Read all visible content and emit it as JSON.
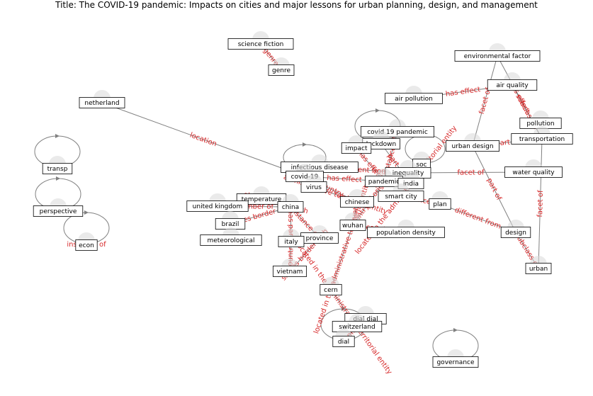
{
  "title": "Title: The COVID-19 pandemic: Impacts on cities and major lessons for urban planning, design, and management",
  "nodes": [
    {
      "id": "science_fiction",
      "label": "science fiction"
    },
    {
      "id": "genre",
      "label": "genre"
    },
    {
      "id": "environmental_factor",
      "label": "environmental factor"
    },
    {
      "id": "air_quality",
      "label": "air quality"
    },
    {
      "id": "netherland",
      "label": "netherland"
    },
    {
      "id": "air_pollution",
      "label": "air pollution"
    },
    {
      "id": "pollution",
      "label": "pollution"
    },
    {
      "id": "covid19_pandemic",
      "label": "covid 19 pandemic"
    },
    {
      "id": "transportation",
      "label": "transportation"
    },
    {
      "id": "urban_design",
      "label": "urban design"
    },
    {
      "id": "lockdown",
      "label": "lockdown"
    },
    {
      "id": "impact",
      "label": "impact"
    },
    {
      "id": "transp",
      "label": "transp"
    },
    {
      "id": "soc",
      "label": "soc"
    },
    {
      "id": "infectious_disease",
      "label": "infectious disease"
    },
    {
      "id": "water_quality",
      "label": "water quality"
    },
    {
      "id": "inequality",
      "label": "inequality"
    },
    {
      "id": "covid19",
      "label": "covid-19"
    },
    {
      "id": "pandemic",
      "label": "pandemic"
    },
    {
      "id": "india",
      "label": "india"
    },
    {
      "id": "virus",
      "label": "virus"
    },
    {
      "id": "perspective",
      "label": "perspective"
    },
    {
      "id": "smart_city",
      "label": "smart city"
    },
    {
      "id": "temperature",
      "label": "temperature"
    },
    {
      "id": "chinese",
      "label": "chinese"
    },
    {
      "id": "plan",
      "label": "plan"
    },
    {
      "id": "united_kingdom",
      "label": "united kingdom"
    },
    {
      "id": "china",
      "label": "china"
    },
    {
      "id": "brazil",
      "label": "brazil"
    },
    {
      "id": "wuhan",
      "label": "wuhan"
    },
    {
      "id": "population_density",
      "label": "population density"
    },
    {
      "id": "design",
      "label": "design"
    },
    {
      "id": "province",
      "label": "province"
    },
    {
      "id": "meteorological",
      "label": "meteorological"
    },
    {
      "id": "econ",
      "label": "econ"
    },
    {
      "id": "italy",
      "label": "italy"
    },
    {
      "id": "urban",
      "label": "urban"
    },
    {
      "id": "vietnam",
      "label": "vietnam"
    },
    {
      "id": "cern",
      "label": "cern"
    },
    {
      "id": "dial_dial",
      "label": "dial dial"
    },
    {
      "id": "switzerland",
      "label": "switzerland"
    },
    {
      "id": "dial",
      "label": "dial"
    },
    {
      "id": "governance",
      "label": "governance"
    }
  ],
  "edges": [
    {
      "from": "science_fiction",
      "to": "genre",
      "label": "genre"
    },
    {
      "from": "netherland",
      "to": "covid19",
      "label": "location"
    },
    {
      "from": "air_pollution",
      "to": "air_quality",
      "label": "has effect"
    },
    {
      "from": "urban_design",
      "to": "environmental_factor",
      "label": "facet of"
    },
    {
      "from": "environmental_factor",
      "to": "transportation",
      "label": "has effect"
    },
    {
      "from": "transportation",
      "to": "air_quality",
      "label": "subclass of"
    },
    {
      "from": "urban_design",
      "to": "transportation",
      "label": "part of"
    },
    {
      "from": "water_quality",
      "to": "inequality",
      "label": "facet of"
    },
    {
      "from": "urban_design",
      "to": "design",
      "label": "part of"
    },
    {
      "from": "transportation",
      "to": "urban",
      "label": "facet of"
    },
    {
      "from": "plan",
      "to": "design",
      "label": "different from"
    },
    {
      "from": "design",
      "to": "urban",
      "label": "subclass of"
    },
    {
      "from": "smart_city",
      "to": "plan",
      "label": "instance of"
    },
    {
      "from": "india",
      "to": "smart_city",
      "label": "located in the administrative territorial entity"
    },
    {
      "from": "covid19",
      "to": "pandemic",
      "label": "has effect"
    },
    {
      "from": "infectious_disease",
      "to": "inequality",
      "label": "different from"
    },
    {
      "from": "covid19_pandemic",
      "to": "pandemic",
      "label": "instance of"
    },
    {
      "from": "lockdown",
      "to": "india",
      "label": "part of"
    },
    {
      "from": "impact",
      "to": "pandemic",
      "label": "has effect"
    },
    {
      "from": "infectious_disease",
      "to": "covid19",
      "label": "located in"
    },
    {
      "from": "temperature",
      "to": "china",
      "label": "shares border with"
    },
    {
      "from": "united_kingdom",
      "to": "china",
      "label": "member of"
    },
    {
      "from": "brazil",
      "to": "china",
      "label": "shares border with"
    },
    {
      "from": "virus",
      "to": "chinese",
      "label": "administrative territorial entity"
    },
    {
      "from": "chinese",
      "to": "wuhan",
      "label": "country"
    },
    {
      "from": "wuhan",
      "to": "population_density",
      "label": "country"
    },
    {
      "from": "china",
      "to": "province",
      "label": "instance of"
    },
    {
      "from": "province",
      "to": "vietnam",
      "label": "shares border with"
    },
    {
      "from": "italy",
      "to": "vietnam",
      "label": "country"
    },
    {
      "from": "china",
      "to": "italy",
      "label": "has part"
    },
    {
      "from": "wuhan",
      "to": "cern",
      "label": "located in the administrative territorial entity"
    },
    {
      "from": "cern",
      "to": "switzerland",
      "label": "located in the administrative territorial entity"
    },
    {
      "from": "switzerland",
      "to": "dial",
      "label": "capital"
    },
    {
      "from": "pandemic",
      "to": "wuhan",
      "label": "country of origin"
    },
    {
      "from": "chinese",
      "to": "covid19",
      "label": "country"
    },
    {
      "from": "econ",
      "to": "econ",
      "label": "instance of"
    },
    {
      "from": "transp",
      "to": "transp",
      "label": ""
    },
    {
      "from": "perspective",
      "to": "perspective",
      "label": ""
    },
    {
      "from": "governance",
      "to": "governance",
      "label": ""
    },
    {
      "from": "covid19_pandemic",
      "to": "covid19_pandemic",
      "label": ""
    },
    {
      "from": "infectious_disease",
      "to": "infectious_disease",
      "label": ""
    },
    {
      "from": "dial",
      "to": "dial",
      "label": ""
    },
    {
      "from": "smart_city",
      "to": "smart_city",
      "label": ""
    }
  ]
}
